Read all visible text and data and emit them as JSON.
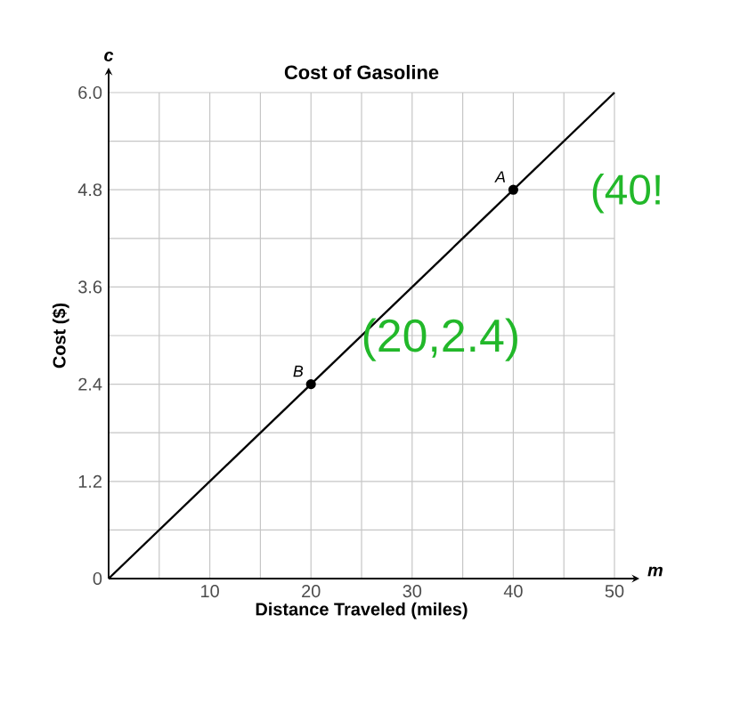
{
  "chart_data": {
    "type": "line",
    "title": "Cost of Gasoline",
    "xlabel": "Distance Traveled (miles)",
    "ylabel": "Cost ($)",
    "xlim": [
      0,
      50
    ],
    "ylim": [
      0,
      6
    ],
    "xticks": [
      {
        "value": 0,
        "label": null
      },
      {
        "value": 5,
        "label": null
      },
      10,
      {
        "value": 15,
        "label": null
      },
      20,
      {
        "value": 25,
        "label": null
      },
      30,
      {
        "value": 35,
        "label": null
      },
      40,
      {
        "value": 45,
        "label": null
      },
      50
    ],
    "yticks": [
      0,
      {
        "value": 0.6,
        "label": null
      },
      1.2,
      {
        "value": 1.8,
        "label": null
      },
      2.4,
      {
        "value": 3,
        "label": null
      },
      3.6,
      {
        "value": 4.2,
        "label": null
      },
      4.8,
      {
        "value": 5.4,
        "label": null
      },
      {
        "value": 6,
        "label": "6.0"
      }
    ],
    "grid": true,
    "series": [
      {
        "color": "#000000",
        "marker": "none",
        "x": [
          0,
          50
        ],
        "values": [
          0,
          6
        ]
      },
      {
        "type": "scatter",
        "color": "#000000",
        "marker": "circle",
        "x": [
          20,
          40
        ],
        "values": [
          2.4,
          4.8
        ]
      }
    ],
    "annotations": [
      "c",
      "m",
      "A",
      "B",
      {
        "text": "(40!",
        "x": 40,
        "y": 4.8
      },
      {
        "text": "(20,2.4)",
        "x": 20,
        "y": 2.4
      }
    ]
  }
}
